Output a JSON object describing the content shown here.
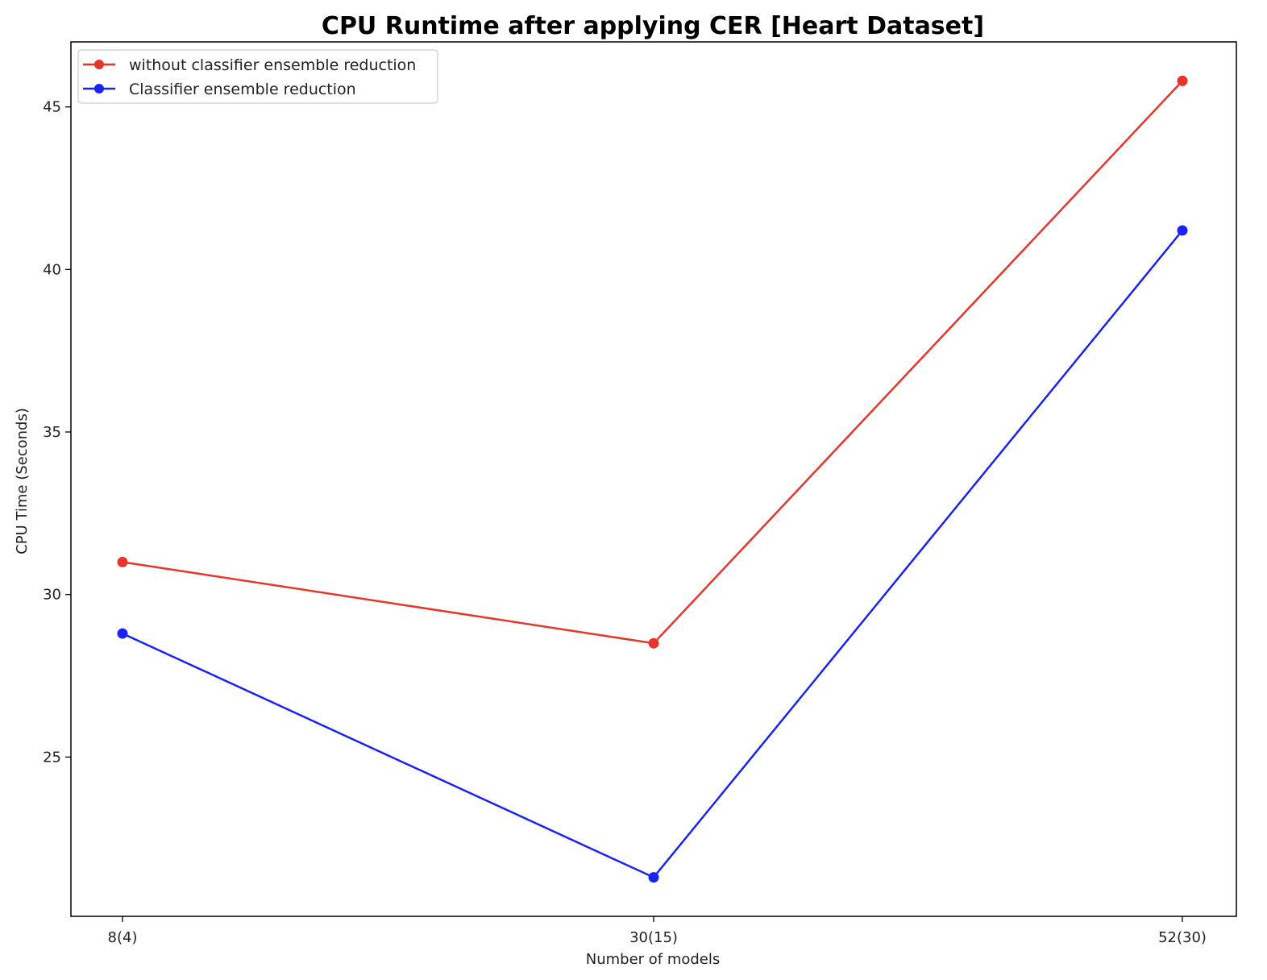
{
  "chart_data": {
    "type": "line",
    "title": "CPU Runtime after applying CER [Heart Dataset]",
    "xlabel": "Number of models",
    "ylabel": "CPU Time (Seconds)",
    "categories": [
      "8(4)",
      "30(15)",
      "52(30)"
    ],
    "ylim": [
      20.1,
      47.0
    ],
    "yticks": [
      25,
      30,
      35,
      40,
      45
    ],
    "grid": false,
    "legend_position": "top-left",
    "series": [
      {
        "name": "without classifier ensemble reduction",
        "color": "#e8352b",
        "marker": "circle",
        "values": [
          31.0,
          28.5,
          45.8
        ]
      },
      {
        "name": "Classifier ensemble reduction",
        "color": "#1a23f5",
        "marker": "circle",
        "values": [
          28.8,
          21.3,
          41.2
        ]
      }
    ]
  }
}
